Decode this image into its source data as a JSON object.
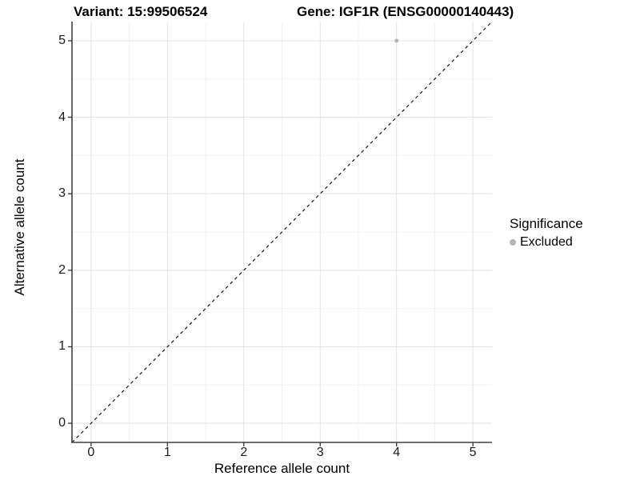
{
  "titles": {
    "variant": "Variant: 15:99506524",
    "gene": "Gene: IGF1R (ENSG00000140443)"
  },
  "chart_data": {
    "type": "scatter",
    "xlabel": "Reference allele count",
    "ylabel": "Alternative allele count",
    "xlim": [
      -0.25,
      5.25
    ],
    "ylim": [
      -0.25,
      5.25
    ],
    "x_ticks": [
      0,
      1,
      2,
      3,
      4,
      5
    ],
    "y_ticks": [
      0,
      1,
      2,
      3,
      4,
      5
    ],
    "minor_grid_step": 0.5,
    "grid": "major+minor",
    "legend_position": "right",
    "identity_line": {
      "style": "dashed",
      "color": "#000000",
      "from": [
        -0.25,
        -0.25
      ],
      "to": [
        5.25,
        5.25
      ]
    },
    "series": [
      {
        "name": "Excluded",
        "color": "#b5b5b5",
        "point_radius": 2.5,
        "points": [
          [
            4,
            5
          ]
        ]
      }
    ]
  },
  "legend": {
    "title": "Significance",
    "items": [
      {
        "label": "Excluded",
        "color": "#b5b5b5",
        "marker": "circle"
      }
    ]
  },
  "colors": {
    "grid_major": "#e3e3e3",
    "grid_minor": "#f2f2f2",
    "axis_line": "#404040",
    "tick_mark": "#333333"
  }
}
